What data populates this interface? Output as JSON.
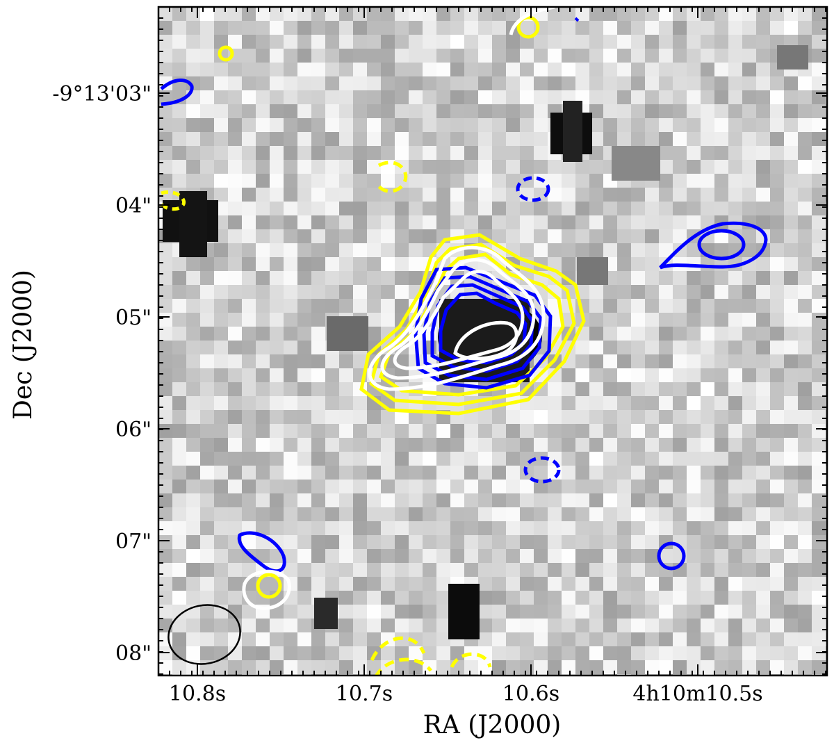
{
  "figure": {
    "xlabel": "RA (J2000)",
    "ylabel": "Dec (J2000)",
    "x_tick_labels": [
      "10.8s",
      "10.7s",
      "10.6s",
      "4h10m10.5s"
    ],
    "y_tick_labels": [
      "-9°13'03\"",
      "04\"",
      "05\"",
      "06\"",
      "07\"",
      "08\""
    ],
    "colors": {
      "background_image": "grayscale",
      "contour_white": "#ffffff",
      "contour_yellow": "#ffff00",
      "contour_blue": "#0000ff",
      "beam": "#000000",
      "frame": "#000000"
    },
    "contours": {
      "negative_contours_dashed": true
    },
    "beam_ellipse_shown": true
  }
}
